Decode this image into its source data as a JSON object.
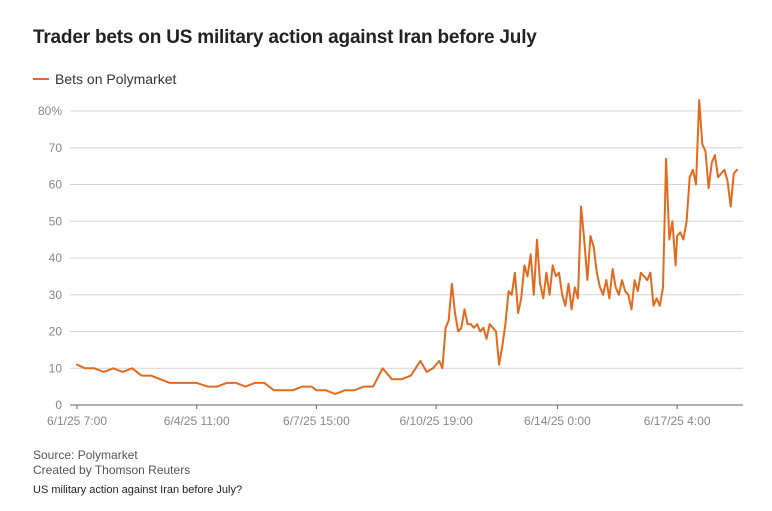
{
  "title": "Trader bets on US military action against Iran before July",
  "legend": {
    "label": "Bets on Polymarket",
    "color": "#e26a1e"
  },
  "footer": {
    "source": "Source: Polymarket",
    "credit": "Created by Thomson Reuters",
    "note": "US military action against Iran before July?"
  },
  "chart_data": {
    "type": "line",
    "title": "Trader bets on US military action against Iran before July",
    "xlabel": "",
    "ylabel": "",
    "ylim": [
      0,
      80
    ],
    "yticks": [
      0,
      10,
      20,
      30,
      40,
      50,
      60,
      70,
      80
    ],
    "ytick_labels": [
      "0",
      "10",
      "20",
      "30",
      "40",
      "50",
      "60",
      "70",
      "80%"
    ],
    "xticks": [
      "6/1/25 7:00",
      "6/4/25 11:00",
      "6/7/25 15:00",
      "6/10/25 19:00",
      "6/14/25 0:00",
      "6/17/25 4:00"
    ],
    "grid": "horizontal",
    "legend_position": "top-left",
    "series": [
      {
        "name": "Bets on Polymarket",
        "color": "#e26a1e",
        "points": [
          [
            "6/1/25 7:00",
            11
          ],
          [
            "6/1/25 12:00",
            10
          ],
          [
            "6/1/25 18:00",
            10
          ],
          [
            "6/2/25 0:00",
            9
          ],
          [
            "6/2/25 6:00",
            10
          ],
          [
            "6/2/25 12:00",
            9
          ],
          [
            "6/2/25 18:00",
            10
          ],
          [
            "6/3/25 0:00",
            8
          ],
          [
            "6/3/25 6:00",
            8
          ],
          [
            "6/3/25 12:00",
            7
          ],
          [
            "6/3/25 18:00",
            6
          ],
          [
            "6/4/25 0:00",
            6
          ],
          [
            "6/4/25 6:00",
            6
          ],
          [
            "6/4/25 11:00",
            6
          ],
          [
            "6/4/25 18:00",
            5
          ],
          [
            "6/5/25 0:00",
            5
          ],
          [
            "6/5/25 6:00",
            6
          ],
          [
            "6/5/25 12:00",
            6
          ],
          [
            "6/5/25 18:00",
            5
          ],
          [
            "6/6/25 0:00",
            6
          ],
          [
            "6/6/25 6:00",
            6
          ],
          [
            "6/6/25 12:00",
            4
          ],
          [
            "6/6/25 18:00",
            4
          ],
          [
            "6/7/25 0:00",
            4
          ],
          [
            "6/7/25 6:00",
            5
          ],
          [
            "6/7/25 12:00",
            5
          ],
          [
            "6/7/25 15:00",
            4
          ],
          [
            "6/7/25 21:00",
            4
          ],
          [
            "6/8/25 3:00",
            3
          ],
          [
            "6/8/25 9:00",
            4
          ],
          [
            "6/8/25 15:00",
            4
          ],
          [
            "6/8/25 21:00",
            5
          ],
          [
            "6/9/25 3:00",
            5
          ],
          [
            "6/9/25 9:00",
            10
          ],
          [
            "6/9/25 15:00",
            7
          ],
          [
            "6/9/25 21:00",
            7
          ],
          [
            "6/10/25 3:00",
            8
          ],
          [
            "6/10/25 9:00",
            12
          ],
          [
            "6/10/25 13:00",
            9
          ],
          [
            "6/10/25 17:00",
            10
          ],
          [
            "6/10/25 19:00",
            11
          ],
          [
            "6/10/25 21:00",
            12
          ],
          [
            "6/10/25 23:00",
            10
          ],
          [
            "6/11/25 1:00",
            21
          ],
          [
            "6/11/25 3:00",
            23
          ],
          [
            "6/11/25 5:00",
            33
          ],
          [
            "6/11/25 7:00",
            25
          ],
          [
            "6/11/25 9:00",
            20
          ],
          [
            "6/11/25 11:00",
            21
          ],
          [
            "6/11/25 13:00",
            26
          ],
          [
            "6/11/25 15:00",
            22
          ],
          [
            "6/11/25 17:00",
            22
          ],
          [
            "6/11/25 19:00",
            21
          ],
          [
            "6/11/25 21:00",
            22
          ],
          [
            "6/11/25 23:00",
            20
          ],
          [
            "6/12/25 1:00",
            21
          ],
          [
            "6/12/25 3:00",
            18
          ],
          [
            "6/12/25 5:00",
            22
          ],
          [
            "6/12/25 7:00",
            21
          ],
          [
            "6/12/25 9:00",
            20
          ],
          [
            "6/12/25 11:00",
            11
          ],
          [
            "6/12/25 13:00",
            16
          ],
          [
            "6/12/25 15:00",
            22
          ],
          [
            "6/12/25 17:00",
            31
          ],
          [
            "6/12/25 19:00",
            30
          ],
          [
            "6/12/25 21:00",
            36
          ],
          [
            "6/12/25 23:00",
            25
          ],
          [
            "6/13/25 1:00",
            29
          ],
          [
            "6/13/25 3:00",
            38
          ],
          [
            "6/13/25 5:00",
            35
          ],
          [
            "6/13/25 7:00",
            41
          ],
          [
            "6/13/25 9:00",
            30
          ],
          [
            "6/13/25 11:00",
            45
          ],
          [
            "6/13/25 13:00",
            33
          ],
          [
            "6/13/25 15:00",
            29
          ],
          [
            "6/13/25 17:00",
            36
          ],
          [
            "6/13/25 19:00",
            30
          ],
          [
            "6/13/25 21:00",
            38
          ],
          [
            "6/13/25 23:00",
            35
          ],
          [
            "6/14/25 1:00",
            36
          ],
          [
            "6/14/25 3:00",
            30
          ],
          [
            "6/14/25 5:00",
            27
          ],
          [
            "6/14/25 7:00",
            33
          ],
          [
            "6/14/25 9:00",
            26
          ],
          [
            "6/14/25 11:00",
            32
          ],
          [
            "6/14/25 13:00",
            29
          ],
          [
            "6/14/25 15:00",
            54
          ],
          [
            "6/14/25 17:00",
            45
          ],
          [
            "6/14/25 19:00",
            34
          ],
          [
            "6/14/25 21:00",
            46
          ],
          [
            "6/14/25 23:00",
            43
          ],
          [
            "6/15/25 1:00",
            36
          ],
          [
            "6/15/25 3:00",
            32
          ],
          [
            "6/15/25 5:00",
            30
          ],
          [
            "6/15/25 7:00",
            34
          ],
          [
            "6/15/25 9:00",
            29
          ],
          [
            "6/15/25 11:00",
            37
          ],
          [
            "6/15/25 13:00",
            32
          ],
          [
            "6/15/25 15:00",
            30
          ],
          [
            "6/15/25 17:00",
            34
          ],
          [
            "6/15/25 19:00",
            31
          ],
          [
            "6/15/25 21:00",
            30
          ],
          [
            "6/15/25 23:00",
            26
          ],
          [
            "6/16/25 1:00",
            34
          ],
          [
            "6/16/25 3:00",
            31
          ],
          [
            "6/16/25 5:00",
            36
          ],
          [
            "6/16/25 7:00",
            35
          ],
          [
            "6/16/25 9:00",
            34
          ],
          [
            "6/16/25 11:00",
            36
          ],
          [
            "6/16/25 13:00",
            27
          ],
          [
            "6/16/25 15:00",
            29
          ],
          [
            "6/16/25 17:00",
            27
          ],
          [
            "6/16/25 19:00",
            32
          ],
          [
            "6/16/25 21:00",
            67
          ],
          [
            "6/16/25 23:00",
            45
          ],
          [
            "6/17/25 1:00",
            50
          ],
          [
            "6/17/25 3:00",
            38
          ],
          [
            "6/17/25 4:00",
            46
          ],
          [
            "6/17/25 6:00",
            47
          ],
          [
            "6/17/25 8:00",
            45
          ],
          [
            "6/17/25 10:00",
            50
          ],
          [
            "6/17/25 12:00",
            62
          ],
          [
            "6/17/25 14:00",
            64
          ],
          [
            "6/17/25 16:00",
            60
          ],
          [
            "6/17/25 18:00",
            83
          ],
          [
            "6/17/25 20:00",
            71
          ],
          [
            "6/17/25 22:00",
            69
          ],
          [
            "6/18/25 0:00",
            59
          ],
          [
            "6/18/25 2:00",
            66
          ],
          [
            "6/18/25 4:00",
            68
          ],
          [
            "6/18/25 6:00",
            62
          ],
          [
            "6/18/25 8:00",
            63
          ],
          [
            "6/18/25 10:00",
            64
          ],
          [
            "6/18/25 12:00",
            61
          ],
          [
            "6/18/25 14:00",
            54
          ],
          [
            "6/18/25 16:00",
            63
          ],
          [
            "6/18/25 18:00",
            64
          ]
        ]
      }
    ]
  }
}
